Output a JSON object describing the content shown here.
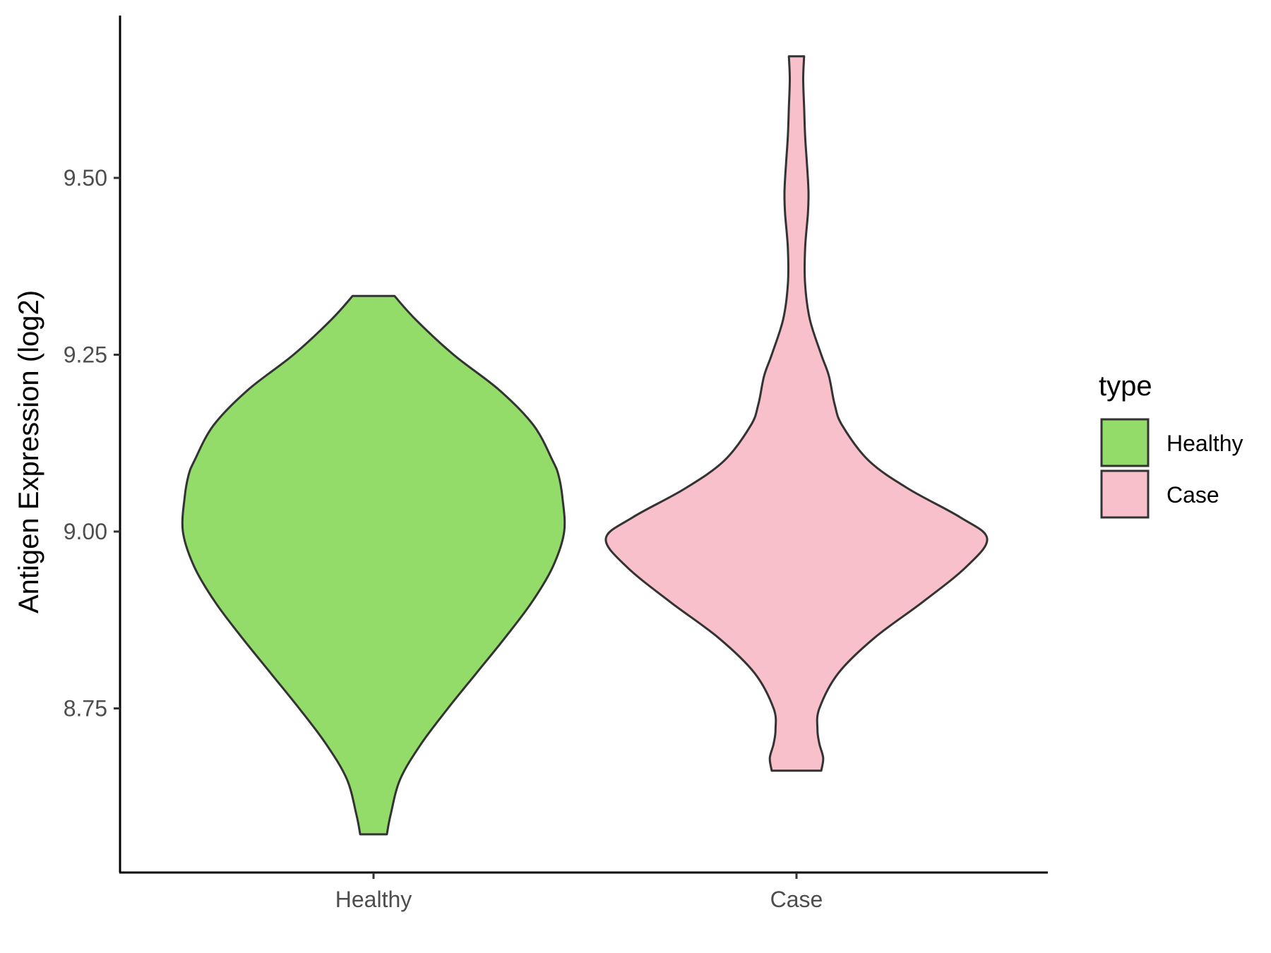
{
  "chart_data": {
    "type": "violin",
    "xlabel": "",
    "ylabel": "Antigen Expression (log2)",
    "ylim": [
      8.52,
      9.73
    ],
    "yticks": [
      8.75,
      9.0,
      9.25,
      9.5
    ],
    "ytick_labels": [
      "8.75",
      "9.00",
      "9.25",
      "9.50"
    ],
    "categories": [
      "Healthy",
      "Case"
    ],
    "grid": false,
    "legend": {
      "title": "type",
      "position": "right",
      "items": [
        {
          "label": "Healthy",
          "color": "#93dc6a"
        },
        {
          "label": "Case",
          "color": "#f8c0cb"
        }
      ]
    },
    "series": [
      {
        "name": "Healthy",
        "color": "#93dc6a",
        "min": 8.572,
        "max": 9.333,
        "density": [
          [
            8.572,
            0.07
          ],
          [
            8.6,
            0.09
          ],
          [
            8.65,
            0.14
          ],
          [
            8.7,
            0.25
          ],
          [
            8.75,
            0.39
          ],
          [
            8.8,
            0.54
          ],
          [
            8.85,
            0.69
          ],
          [
            8.9,
            0.83
          ],
          [
            8.95,
            0.94
          ],
          [
            9.0,
            1.0
          ],
          [
            9.05,
            0.99
          ],
          [
            9.08,
            0.97
          ],
          [
            9.1,
            0.94
          ],
          [
            9.15,
            0.84
          ],
          [
            9.2,
            0.66
          ],
          [
            9.25,
            0.42
          ],
          [
            9.3,
            0.22
          ],
          [
            9.333,
            0.11
          ]
        ]
      },
      {
        "name": "Case",
        "color": "#f8c0cb",
        "min": 8.662,
        "max": 9.672,
        "density": [
          [
            8.662,
            0.13
          ],
          [
            8.68,
            0.14
          ],
          [
            8.7,
            0.12
          ],
          [
            8.72,
            0.11
          ],
          [
            8.75,
            0.12
          ],
          [
            8.8,
            0.22
          ],
          [
            8.85,
            0.41
          ],
          [
            8.9,
            0.66
          ],
          [
            8.95,
            0.89
          ],
          [
            8.99,
            1.0
          ],
          [
            9.02,
            0.86
          ],
          [
            9.06,
            0.59
          ],
          [
            9.1,
            0.38
          ],
          [
            9.15,
            0.24
          ],
          [
            9.18,
            0.2
          ],
          [
            9.22,
            0.17
          ],
          [
            9.25,
            0.13
          ],
          [
            9.3,
            0.07
          ],
          [
            9.35,
            0.045
          ],
          [
            9.4,
            0.045
          ],
          [
            9.45,
            0.06
          ],
          [
            9.48,
            0.063
          ],
          [
            9.52,
            0.055
          ],
          [
            9.56,
            0.045
          ],
          [
            9.6,
            0.04
          ],
          [
            9.64,
            0.035
          ],
          [
            9.672,
            0.04
          ]
        ]
      }
    ]
  }
}
